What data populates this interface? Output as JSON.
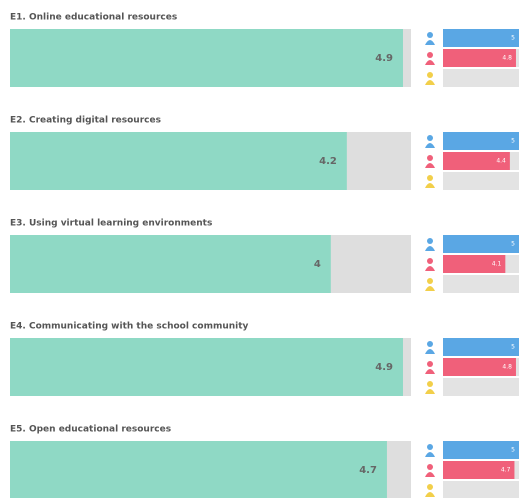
{
  "chart_data": [
    {
      "type": "bar",
      "title": "E1. Online educational resources",
      "values": [
        4.9
      ],
      "color": "#8fd9c5",
      "xlim": [
        0,
        5
      ],
      "series": [
        {
          "color": "#5aa7e4",
          "values": [
            5
          ]
        },
        {
          "color": "#f0607a",
          "values": [
            4.8
          ]
        },
        {
          "color": "#f2cf4a",
          "values": [
            null
          ]
        }
      ]
    },
    {
      "type": "bar",
      "title": "E2. Creating digital resources",
      "values": [
        4.2
      ],
      "color": "#8fd9c5",
      "xlim": [
        0,
        5
      ],
      "series": [
        {
          "color": "#5aa7e4",
          "values": [
            5
          ]
        },
        {
          "color": "#f0607a",
          "values": [
            4.4
          ]
        },
        {
          "color": "#f2cf4a",
          "values": [
            null
          ]
        }
      ]
    },
    {
      "type": "bar",
      "title": "E3. Using virtual learning environments",
      "values": [
        4
      ],
      "color": "#8fd9c5",
      "xlim": [
        0,
        5
      ],
      "series": [
        {
          "color": "#5aa7e4",
          "values": [
            5
          ]
        },
        {
          "color": "#f0607a",
          "values": [
            4.1
          ]
        },
        {
          "color": "#f2cf4a",
          "values": [
            null
          ]
        }
      ]
    },
    {
      "type": "bar",
      "title": "E4. Communicating with the school community",
      "values": [
        4.9
      ],
      "color": "#8fd9c5",
      "xlim": [
        0,
        5
      ],
      "series": [
        {
          "color": "#5aa7e4",
          "values": [
            5
          ]
        },
        {
          "color": "#f0607a",
          "values": [
            4.8
          ]
        },
        {
          "color": "#f2cf4a",
          "values": [
            null
          ]
        }
      ]
    },
    {
      "type": "bar",
      "title": "E5. Open educational resources",
      "values": [
        4.7
      ],
      "color": "#8fd9c5",
      "xlim": [
        0,
        5
      ],
      "series": [
        {
          "color": "#5aa7e4",
          "values": [
            5
          ]
        },
        {
          "color": "#f0607a",
          "values": [
            4.7
          ]
        },
        {
          "color": "#f2cf4a",
          "values": [
            null
          ]
        }
      ]
    }
  ]
}
